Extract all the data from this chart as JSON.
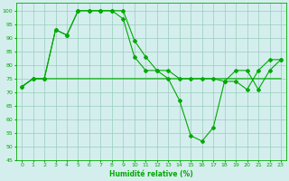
{
  "line_flat": {
    "x": [
      0,
      1,
      2,
      3,
      4,
      5,
      6,
      7,
      8,
      9,
      10,
      11,
      12,
      13,
      14,
      15,
      16,
      17,
      18,
      19,
      20,
      21,
      22,
      23
    ],
    "y": [
      72,
      75,
      75,
      75,
      75,
      75,
      75,
      75,
      75,
      75,
      75,
      75,
      75,
      75,
      75,
      75,
      75,
      75,
      75,
      75,
      75,
      75,
      75,
      75
    ]
  },
  "line_mid": {
    "x": [
      0,
      1,
      2,
      3,
      4,
      5,
      6,
      7,
      8,
      9,
      10,
      11,
      12,
      13,
      14,
      15,
      16,
      17,
      18,
      19,
      20,
      21,
      22,
      23
    ],
    "y": [
      72,
      75,
      75,
      93,
      91,
      100,
      100,
      100,
      100,
      100,
      89,
      83,
      78,
      78,
      75,
      75,
      75,
      75,
      74,
      78,
      78,
      71,
      78,
      82
    ]
  },
  "line_dip": {
    "x": [
      0,
      1,
      2,
      3,
      4,
      5,
      6,
      7,
      8,
      9,
      10,
      11,
      12,
      13,
      14,
      15,
      16,
      17,
      18,
      19,
      20,
      21,
      22,
      23
    ],
    "y": [
      72,
      75,
      75,
      93,
      91,
      100,
      100,
      100,
      100,
      97,
      83,
      78,
      78,
      75,
      67,
      54,
      52,
      57,
      74,
      74,
      71,
      78,
      82,
      82
    ]
  },
  "xlabel": "Humidité relative (%)",
  "xlim": [
    -0.5,
    23.5
  ],
  "ylim": [
    45,
    103
  ],
  "yticks": [
    45,
    50,
    55,
    60,
    65,
    70,
    75,
    80,
    85,
    90,
    95,
    100
  ],
  "xticks": [
    0,
    1,
    2,
    3,
    4,
    5,
    6,
    7,
    8,
    9,
    10,
    11,
    12,
    13,
    14,
    15,
    16,
    17,
    18,
    19,
    20,
    21,
    22,
    23
  ],
  "line_color": "#00aa00",
  "bg_color": "#d4eeee",
  "grid_color": "#99ccbb"
}
